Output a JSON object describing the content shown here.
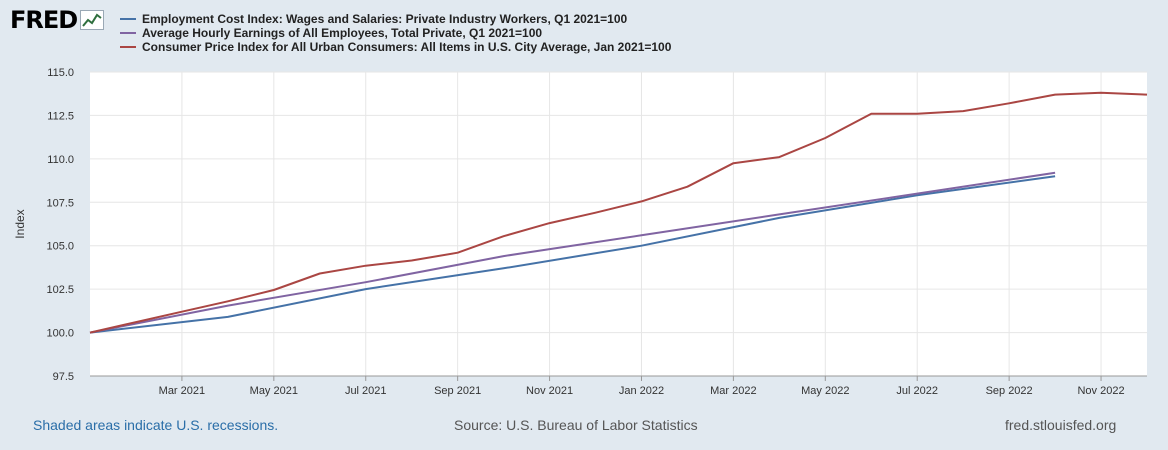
{
  "brand": {
    "logo_text": "FRED"
  },
  "footer": {
    "recession_note": "Shaded areas indicate U.S. recessions.",
    "source": "Source: U.S. Bureau of Labor Statistics",
    "site": "fred.stlouisfed.org"
  },
  "chart_data": {
    "type": "line",
    "ylabel": "Index",
    "ylim": [
      97.5,
      115.0
    ],
    "yticks": [
      "97.5",
      "100.0",
      "102.5",
      "105.0",
      "107.5",
      "110.0",
      "112.5",
      "115.0"
    ],
    "xrange": [
      "2021-01",
      "2022-12"
    ],
    "xtick_labels": [
      "Mar 2021",
      "May 2021",
      "Jul 2021",
      "Sep 2021",
      "Nov 2021",
      "Jan 2022",
      "Mar 2022",
      "May 2022",
      "Jul 2022",
      "Sep 2022",
      "Nov 2022"
    ],
    "grid": true,
    "series": [
      {
        "name": "Employment Cost Index: Wages and Salaries: Private Industry Workers, Q1 2021=100",
        "color": "#4572a7",
        "x": [
          "2021-01",
          "2021-04",
          "2021-07",
          "2021-10",
          "2022-01",
          "2022-04",
          "2022-07",
          "2022-10"
        ],
        "values": [
          100.0,
          100.9,
          102.5,
          103.7,
          105.0,
          106.6,
          107.9,
          109.0
        ]
      },
      {
        "name": "Average Hourly Earnings of All Employees, Total Private, Q1 2021=100",
        "color": "#8064a2",
        "x": [
          "2021-01",
          "2021-04",
          "2021-07",
          "2021-10",
          "2022-01",
          "2022-04",
          "2022-07",
          "2022-10"
        ],
        "values": [
          100.0,
          101.55,
          102.9,
          104.4,
          105.6,
          106.8,
          108.0,
          109.2
        ]
      },
      {
        "name": "Consumer Price Index for All Urban Consumers: All Items in U.S. City Average, Jan 2021=100",
        "color": "#aa4643",
        "x": [
          "2021-01",
          "2021-02",
          "2021-03",
          "2021-04",
          "2021-05",
          "2021-06",
          "2021-07",
          "2021-08",
          "2021-09",
          "2021-10",
          "2021-11",
          "2021-12",
          "2022-01",
          "2022-02",
          "2022-03",
          "2022-04",
          "2022-05",
          "2022-06",
          "2022-07",
          "2022-08",
          "2022-09",
          "2022-10",
          "2022-11",
          "2022-12"
        ],
        "values": [
          100.0,
          100.6,
          101.2,
          101.8,
          102.45,
          103.4,
          103.85,
          104.15,
          104.6,
          105.55,
          106.3,
          106.9,
          107.55,
          108.4,
          109.75,
          110.1,
          111.2,
          112.6,
          112.6,
          112.75,
          113.2,
          113.7,
          113.8,
          113.7
        ]
      }
    ]
  }
}
